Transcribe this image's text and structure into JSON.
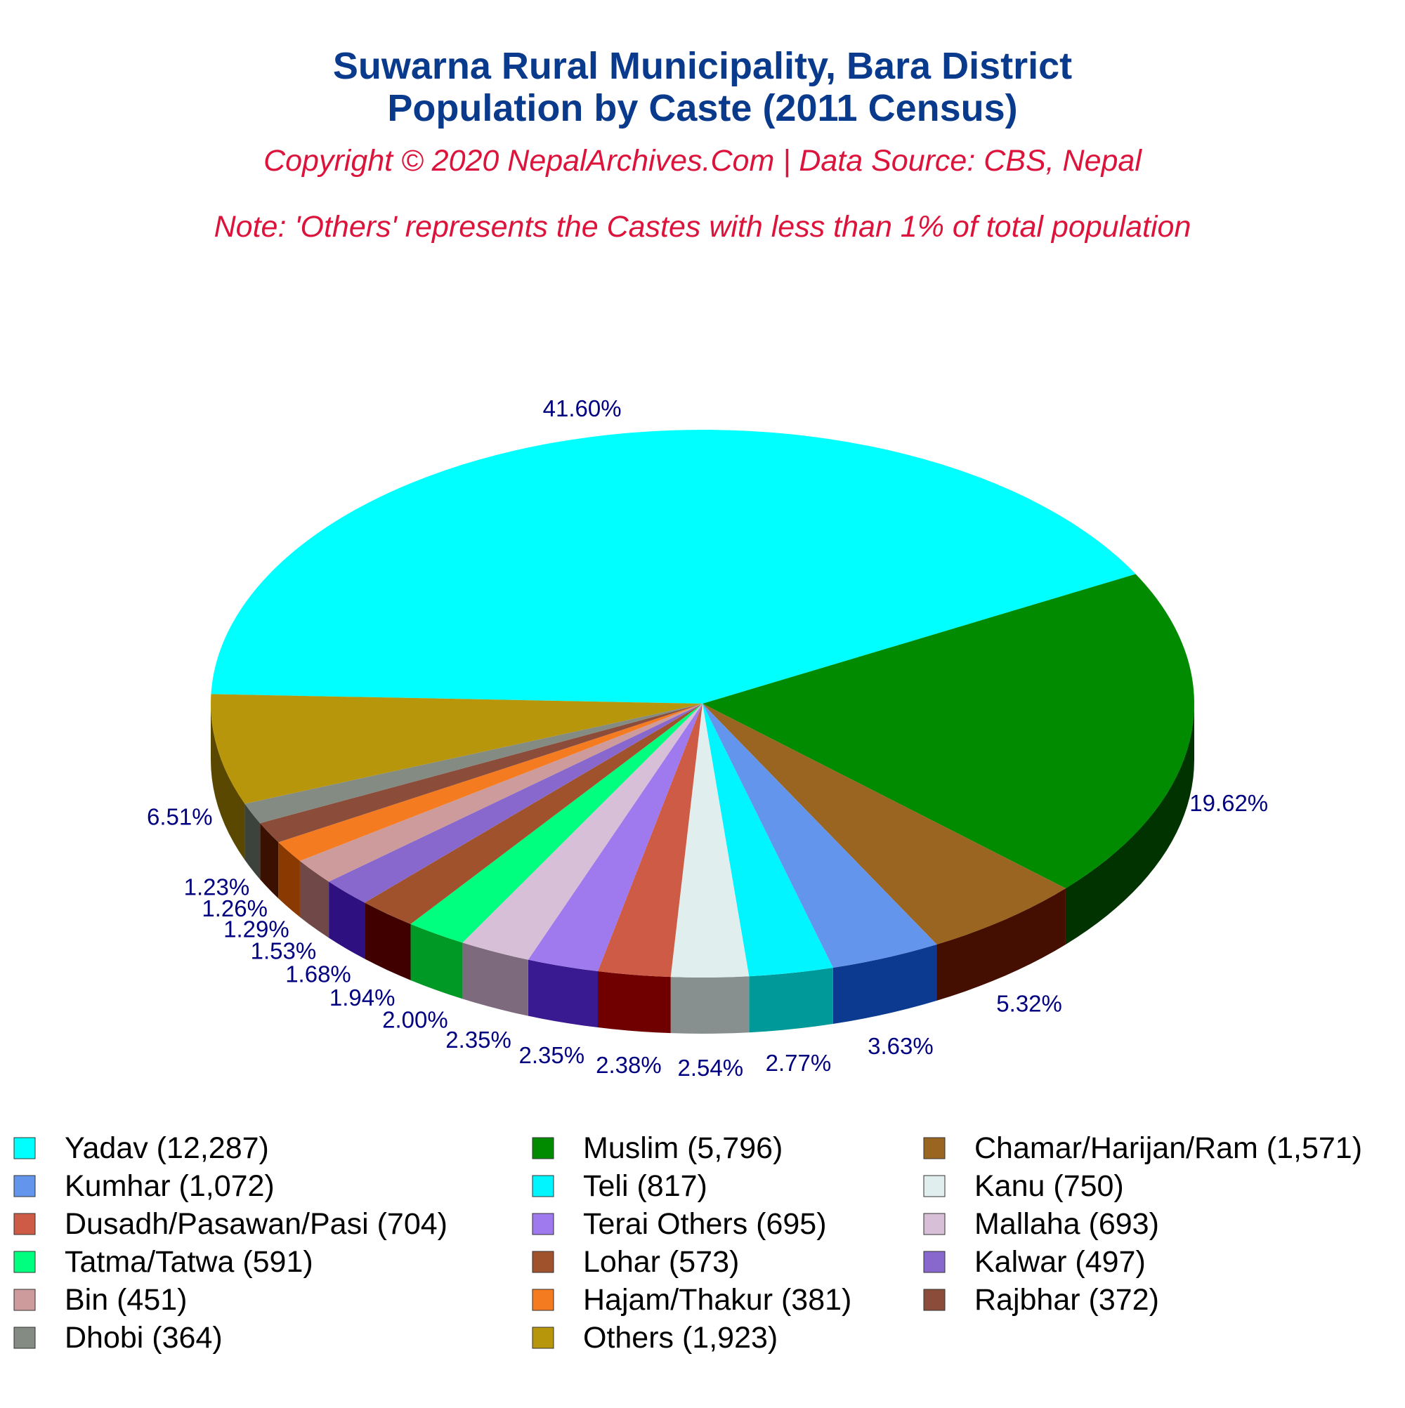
{
  "chart_data": {
    "type": "pie",
    "title_lines": [
      "Suwarna Rural Municipality, Bara District",
      "Population by Caste (2011 Census)"
    ],
    "copyright": "Copyright © 2020 NepalArchives.Com | Data Source: CBS, Nepal",
    "note": "Note: 'Others' represents the Castes with less than 1% of total population",
    "colors": {
      "title": "#0a3a8c",
      "subtitle": "#dc143c",
      "labels": "#000080"
    },
    "legend_position": "bottom",
    "slices": [
      {
        "label": "Yadav (12,287)",
        "value": 12287,
        "percent_label": "41.60%",
        "color": "#00ffff",
        "side": "#00b3b3"
      },
      {
        "label": "Muslim (5,796)",
        "value": 5796,
        "percent_label": "19.62%",
        "color": "#008b00",
        "side": "#003300"
      },
      {
        "label": "Chamar/Harijan/Ram (1,571)",
        "value": 1571,
        "percent_label": "5.32%",
        "color": "#9a6520",
        "side": "#440e00"
      },
      {
        "label": "Kumhar (1,072)",
        "value": 1072,
        "percent_label": "3.63%",
        "color": "#6495ed",
        "side": "#0c3a90"
      },
      {
        "label": "Teli (817)",
        "value": 817,
        "percent_label": "2.77%",
        "color": "#00f5ff",
        "side": "#009999"
      },
      {
        "label": "Kanu (750)",
        "value": 750,
        "percent_label": "2.54%",
        "color": "#e0eeee",
        "side": "#888f8f"
      },
      {
        "label": "Dusadh/Pasawan/Pasi (704)",
        "value": 704,
        "percent_label": "2.38%",
        "color": "#cd5b45",
        "side": "#700000"
      },
      {
        "label": "Terai Others (695)",
        "value": 695,
        "percent_label": "2.35%",
        "color": "#9f79ee",
        "side": "#3a1a90"
      },
      {
        "label": "Mallaha (693)",
        "value": 693,
        "percent_label": "2.35%",
        "color": "#d8bfd8",
        "side": "#7d6a7d"
      },
      {
        "label": "Tatma/Tatwa (591)",
        "value": 591,
        "percent_label": "2.00%",
        "color": "#00ff7f",
        "side": "#009926"
      },
      {
        "label": "Lohar (573)",
        "value": 573,
        "percent_label": "1.94%",
        "color": "#a0522d",
        "side": "#400000"
      },
      {
        "label": "Kalwar (497)",
        "value": 497,
        "percent_label": "1.68%",
        "color": "#8968cd",
        "side": "#2e1080"
      },
      {
        "label": "Bin (451)",
        "value": 451,
        "percent_label": "1.53%",
        "color": "#cd9b9b",
        "side": "#704848"
      },
      {
        "label": "Hajam/Thakur (381)",
        "value": 381,
        "percent_label": "1.29%",
        "color": "#f47b20",
        "side": "#8a3a00"
      },
      {
        "label": "Rajbhar (372)",
        "value": 372,
        "percent_label": "1.26%",
        "color": "#8b4c39",
        "side": "#3a1000"
      },
      {
        "label": "Dhobi (364)",
        "value": 364,
        "percent_label": "1.23%",
        "color": "#838b83",
        "side": "#3c423c"
      },
      {
        "label": "Others (1,923)",
        "value": 1923,
        "percent_label": "6.51%",
        "color": "#b8960b",
        "side": "#5a4800"
      }
    ]
  }
}
